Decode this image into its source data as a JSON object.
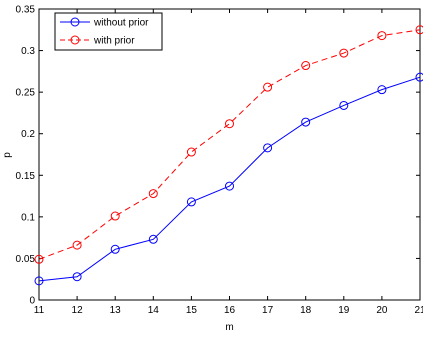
{
  "chart_data": {
    "type": "line",
    "title": "",
    "xlabel": "m",
    "ylabel": "p",
    "x": [
      11,
      12,
      13,
      14,
      15,
      16,
      17,
      18,
      19,
      20,
      21
    ],
    "xlim": [
      11,
      21
    ],
    "ylim": [
      0,
      0.35
    ],
    "xticks": [
      "11",
      "12",
      "13",
      "14",
      "15",
      "16",
      "17",
      "18",
      "19",
      "20",
      "21"
    ],
    "yticks": [
      "0",
      "0.05",
      "0.1",
      "0.15",
      "0.2",
      "0.25",
      "0.3",
      "0.35"
    ],
    "grid": false,
    "legend_position": "top-left",
    "series": [
      {
        "name": "without prior",
        "color": "#0000ff",
        "line_style": "solid",
        "marker": "circle",
        "values": [
          0.023,
          0.028,
          0.061,
          0.073,
          0.118,
          0.137,
          0.183,
          0.214,
          0.234,
          0.253,
          0.268
        ]
      },
      {
        "name": "with prior",
        "color": "#ff0000",
        "line_style": "dashed",
        "marker": "circle",
        "values": [
          0.049,
          0.066,
          0.101,
          0.128,
          0.178,
          0.212,
          0.256,
          0.282,
          0.297,
          0.318,
          0.325
        ]
      }
    ]
  }
}
